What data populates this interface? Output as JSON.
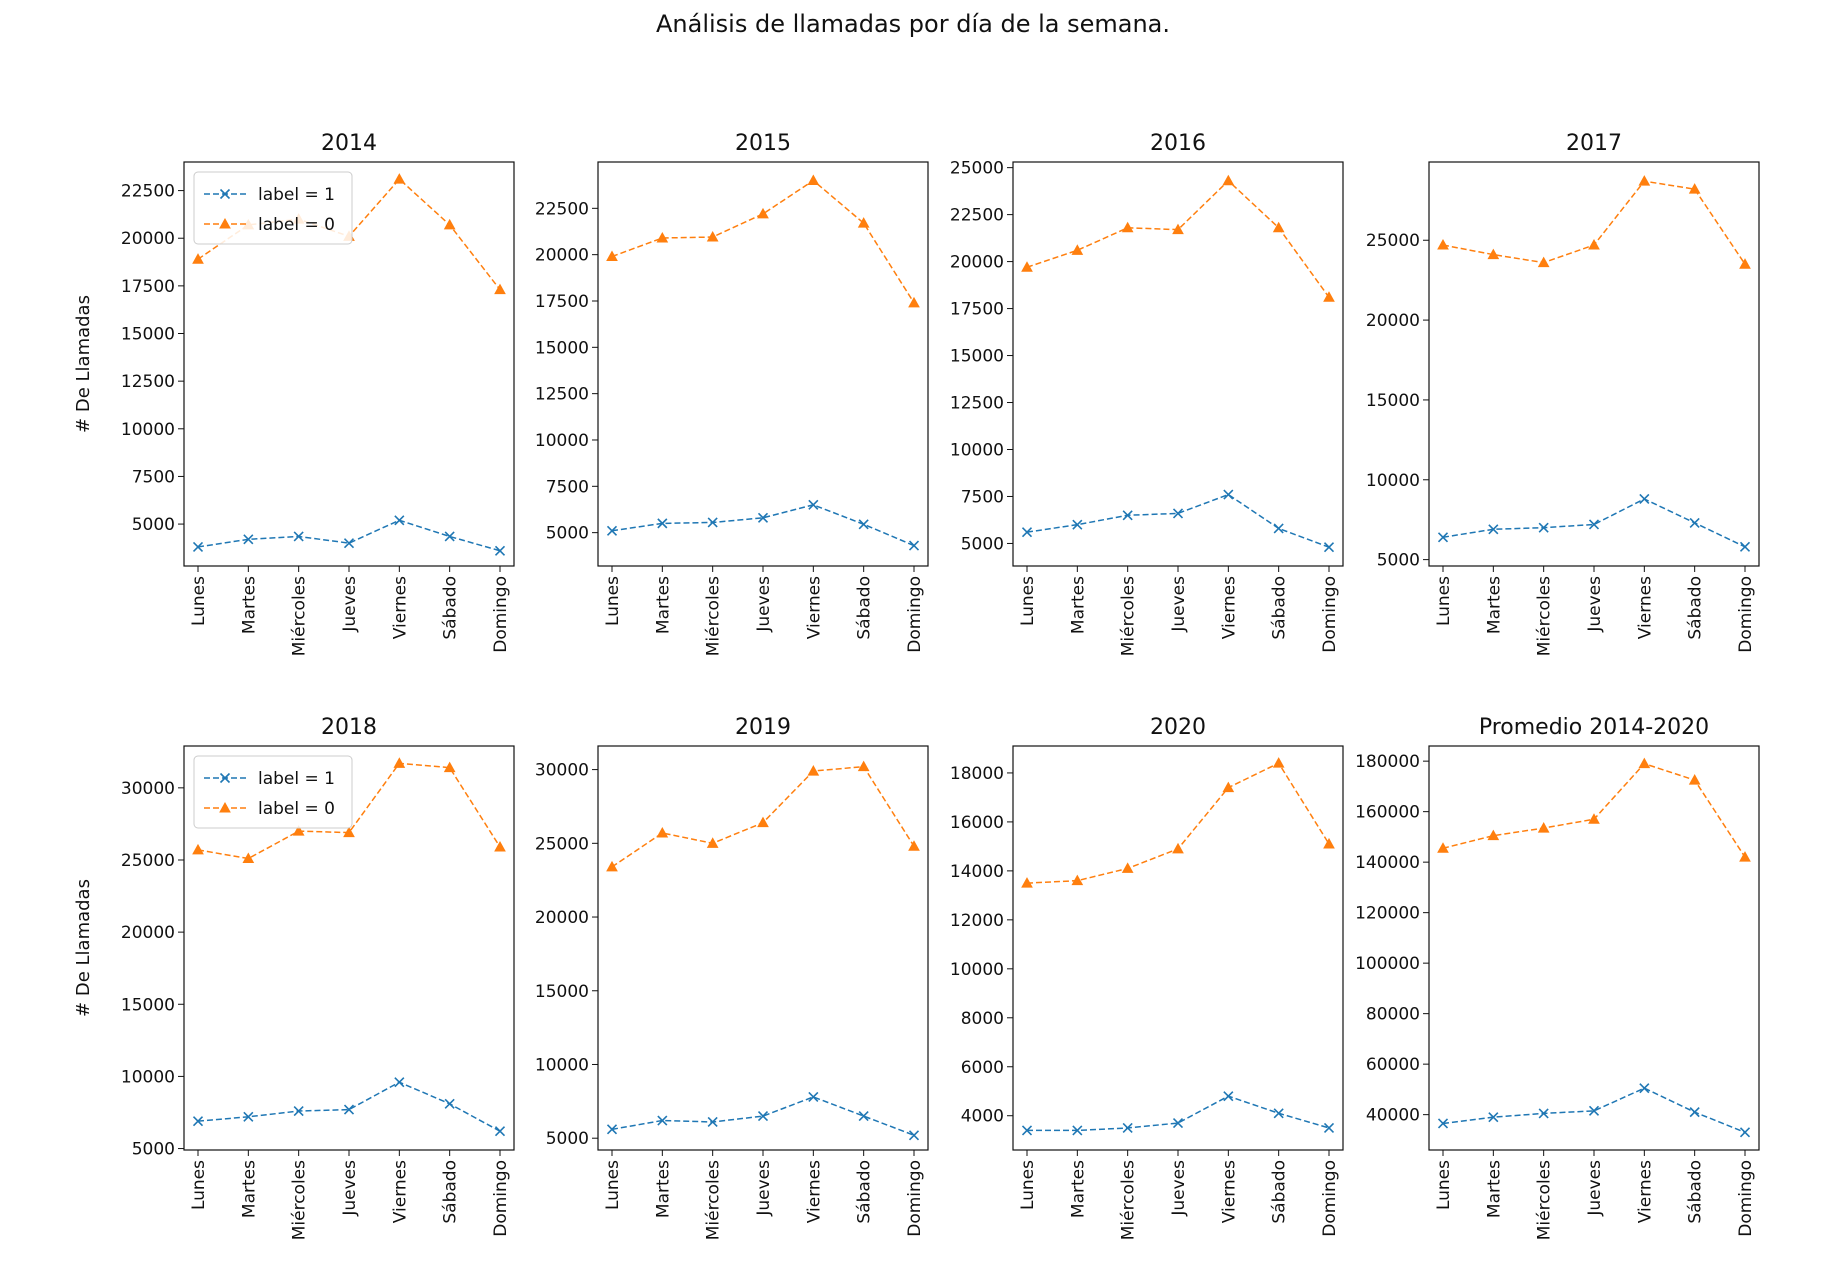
{
  "figure": {
    "title": "Análisis de llamadas por día de la semana."
  },
  "colors": {
    "label1": "#1f77b4",
    "label0": "#ff7f0e"
  },
  "chart_data": [
    {
      "type": "line",
      "title": "2014",
      "xlabel": "",
      "ylabel": "# De Llamadas",
      "categories": [
        "Lunes",
        "Martes",
        "Miércoles",
        "Jueves",
        "Viernes",
        "Sábado",
        "Domingo"
      ],
      "ylim": [
        2800,
        24000
      ],
      "yticks": [
        5000,
        7500,
        10000,
        12500,
        15000,
        17500,
        20000,
        22500
      ],
      "legend": "upper-left",
      "series": [
        {
          "name": "label = 1",
          "marker": "x",
          "values": [
            3800,
            4200,
            4350,
            4000,
            5200,
            4350,
            3600
          ]
        },
        {
          "name": "label = 0",
          "marker": "triangle",
          "values": [
            18900,
            20700,
            21000,
            20100,
            23100,
            20700,
            17300
          ]
        }
      ]
    },
    {
      "type": "line",
      "title": "2015",
      "xlabel": "",
      "ylabel": "",
      "categories": [
        "Lunes",
        "Martes",
        "Miércoles",
        "Jueves",
        "Viernes",
        "Sábado",
        "Domingo"
      ],
      "ylim": [
        3200,
        25000
      ],
      "yticks": [
        5000,
        7500,
        10000,
        12500,
        15000,
        17500,
        20000,
        22500
      ],
      "legend": "",
      "series": [
        {
          "name": "label = 1",
          "marker": "x",
          "values": [
            5100,
            5500,
            5550,
            5800,
            6500,
            5450,
            4300
          ]
        },
        {
          "name": "label = 0",
          "marker": "triangle",
          "values": [
            19900,
            20900,
            20950,
            22200,
            24000,
            21700,
            17400
          ]
        }
      ]
    },
    {
      "type": "line",
      "title": "2016",
      "xlabel": "",
      "ylabel": "",
      "categories": [
        "Lunes",
        "Martes",
        "Miércoles",
        "Jueves",
        "Viernes",
        "Sábado",
        "Domingo"
      ],
      "ylim": [
        3800,
        25300
      ],
      "yticks": [
        5000,
        7500,
        10000,
        12500,
        15000,
        17500,
        20000,
        22500,
        25000
      ],
      "legend": "",
      "series": [
        {
          "name": "label = 1",
          "marker": "x",
          "values": [
            5600,
            6000,
            6500,
            6600,
            7600,
            5800,
            4800
          ]
        },
        {
          "name": "label = 0",
          "marker": "triangle",
          "values": [
            19700,
            20600,
            21800,
            21700,
            24300,
            21800,
            18100
          ]
        }
      ]
    },
    {
      "type": "line",
      "title": "2017",
      "xlabel": "",
      "ylabel": "",
      "categories": [
        "Lunes",
        "Martes",
        "Miércoles",
        "Jueves",
        "Viernes",
        "Sábado",
        "Domingo"
      ],
      "ylim": [
        4600,
        29900
      ],
      "yticks": [
        5000,
        10000,
        15000,
        20000,
        25000
      ],
      "legend": "",
      "series": [
        {
          "name": "label = 1",
          "marker": "x",
          "values": [
            6400,
            6900,
            7000,
            7200,
            8800,
            7300,
            5800
          ]
        },
        {
          "name": "label = 0",
          "marker": "triangle",
          "values": [
            24700,
            24100,
            23600,
            24700,
            28700,
            28200,
            23500
          ]
        }
      ]
    },
    {
      "type": "line",
      "title": "2018",
      "xlabel": "",
      "ylabel": "# De Llamadas",
      "categories": [
        "Lunes",
        "Martes",
        "Miércoles",
        "Jueves",
        "Viernes",
        "Sábado",
        "Domingo"
      ],
      "ylim": [
        4900,
        32900
      ],
      "yticks": [
        5000,
        10000,
        15000,
        20000,
        25000,
        30000
      ],
      "legend": "upper-left",
      "series": [
        {
          "name": "label = 1",
          "marker": "x",
          "values": [
            6900,
            7200,
            7600,
            7700,
            9600,
            8100,
            6200
          ]
        },
        {
          "name": "label = 0",
          "marker": "triangle",
          "values": [
            25700,
            25100,
            27000,
            26900,
            31700,
            31400,
            25900
          ]
        }
      ]
    },
    {
      "type": "line",
      "title": "2019",
      "xlabel": "",
      "ylabel": "",
      "categories": [
        "Lunes",
        "Martes",
        "Miércoles",
        "Jueves",
        "Viernes",
        "Sábado",
        "Domingo"
      ],
      "ylim": [
        4200,
        31600
      ],
      "yticks": [
        5000,
        10000,
        15000,
        20000,
        25000,
        30000
      ],
      "legend": "",
      "series": [
        {
          "name": "label = 1",
          "marker": "x",
          "values": [
            5600,
            6200,
            6100,
            6500,
            7800,
            6500,
            5200
          ]
        },
        {
          "name": "label = 0",
          "marker": "triangle",
          "values": [
            23400,
            25700,
            25000,
            26400,
            29900,
            30200,
            24800
          ]
        }
      ]
    },
    {
      "type": "line",
      "title": "2020",
      "xlabel": "",
      "ylabel": "",
      "categories": [
        "Lunes",
        "Martes",
        "Miércoles",
        "Jueves",
        "Viernes",
        "Sábado",
        "Domingo"
      ],
      "ylim": [
        2600,
        19100
      ],
      "yticks": [
        4000,
        6000,
        8000,
        10000,
        12000,
        14000,
        16000,
        18000
      ],
      "legend": "",
      "series": [
        {
          "name": "label = 1",
          "marker": "x",
          "values": [
            3400,
            3400,
            3500,
            3700,
            4800,
            4100,
            3500
          ]
        },
        {
          "name": "label = 0",
          "marker": "triangle",
          "values": [
            13500,
            13600,
            14100,
            14900,
            17400,
            18400,
            15100
          ]
        }
      ]
    },
    {
      "type": "line",
      "title": "Promedio 2014-2020",
      "xlabel": "",
      "ylabel": "",
      "categories": [
        "Lunes",
        "Martes",
        "Miércoles",
        "Jueves",
        "Viernes",
        "Sábado",
        "Domingo"
      ],
      "ylim": [
        26000,
        186000
      ],
      "yticks": [
        40000,
        60000,
        80000,
        100000,
        120000,
        140000,
        160000,
        180000
      ],
      "legend": "",
      "series": [
        {
          "name": "label = 1",
          "marker": "x",
          "values": [
            36500,
            39000,
            40500,
            41500,
            50500,
            41000,
            33000
          ]
        },
        {
          "name": "label = 0",
          "marker": "triangle",
          "values": [
            145500,
            150500,
            153500,
            157000,
            179000,
            172500,
            142000
          ]
        }
      ]
    }
  ]
}
